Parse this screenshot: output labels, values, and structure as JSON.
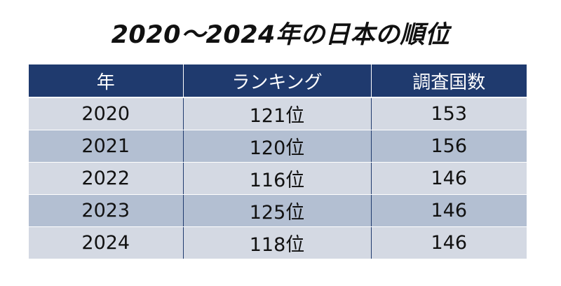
{
  "title": "2020～2024年の日本の順位",
  "table": {
    "headers": [
      "年",
      "ランキング",
      "調査国数"
    ],
    "rows": [
      [
        "2020",
        "121位",
        "153"
      ],
      [
        "2021",
        "120位",
        "156"
      ],
      [
        "2022",
        "116位",
        "146"
      ],
      [
        "2023",
        "125位",
        "146"
      ],
      [
        "2024",
        "118位",
        "146"
      ]
    ]
  },
  "colors": {
    "header_bg": "#1f3a6e",
    "row_light": "#d4d9e3",
    "row_dark": "#b3bfd2"
  }
}
